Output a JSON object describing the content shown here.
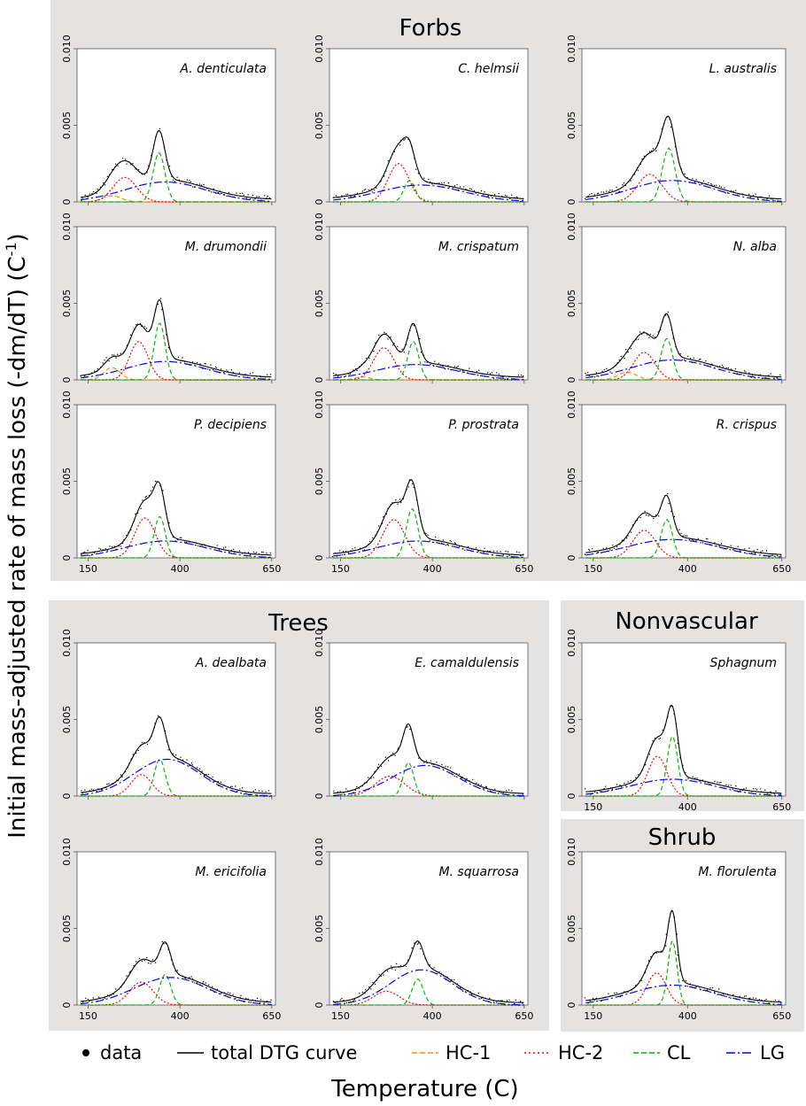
{
  "figure": {
    "ylabel": "Initial mass-adjusted rate of mass loss (-dm/dT) (C",
    "ylabel_sup": "-1",
    "ylabel_end": ")",
    "xlabel": "Temperature (C)"
  },
  "groups": {
    "forbs": "Forbs",
    "trees": "Trees",
    "nonvascular": "Nonvascular",
    "shrub": "Shrub"
  },
  "legend": [
    {
      "key": "data",
      "label": "data",
      "color": "#000000",
      "style": "dot"
    },
    {
      "key": "total",
      "label": "total DTG curve",
      "color": "#000000",
      "style": "solid"
    },
    {
      "key": "hc1",
      "label": "HC-1",
      "color": "#ff8c00",
      "style": "dash"
    },
    {
      "key": "hc2",
      "label": "HC-2",
      "color": "#ff0000",
      "style": "dot-line"
    },
    {
      "key": "cl",
      "label": "CL",
      "color": "#00bb00",
      "style": "dash"
    },
    {
      "key": "lg",
      "label": "LG",
      "color": "#0000ff",
      "style": "dash"
    }
  ],
  "chart_data": {
    "type": "line",
    "xlim": [
      120,
      660
    ],
    "ylim": [
      0,
      0.01
    ],
    "xticks": [
      "150",
      "400",
      "650"
    ],
    "yticks": [
      "0",
      "0.005",
      "0.010"
    ],
    "panels": [
      {
        "id": "A_denticulata",
        "label": "A. denticulata",
        "group": "Forbs",
        "components": {
          "hc1": [
            0.0004,
            215,
            25
          ],
          "hc2": [
            0.0016,
            250,
            32
          ],
          "cl": [
            0.0032,
            343,
            16
          ],
          "lg": [
            0.0013,
            360,
            110
          ]
        }
      },
      {
        "id": "C_helmsii",
        "label": "C. helmsii",
        "group": "Forbs",
        "components": {
          "hc2": [
            0.0025,
            308,
            28
          ],
          "cl": [
            0.0014,
            338,
            15
          ],
          "lg": [
            0.0011,
            370,
            115
          ]
        }
      },
      {
        "id": "L_australis",
        "label": "L. australis",
        "group": "Forbs",
        "components": {
          "hc2": [
            0.0018,
            300,
            32
          ],
          "cl": [
            0.0035,
            350,
            17
          ],
          "lg": [
            0.0014,
            360,
            110
          ]
        }
      },
      {
        "id": "M_drumondii",
        "label": "M. drumondii",
        "group": "Forbs",
        "components": {
          "hc1": [
            0.0008,
            215,
            22
          ],
          "hc2": [
            0.0025,
            288,
            25
          ],
          "cl": [
            0.0037,
            345,
            15
          ],
          "lg": [
            0.0012,
            360,
            110
          ]
        }
      },
      {
        "id": "M_crispatum",
        "label": "M. crispatum",
        "group": "Forbs",
        "components": {
          "hc1": [
            0.0002,
            210,
            20
          ],
          "hc2": [
            0.0021,
            268,
            28
          ],
          "cl": [
            0.0025,
            348,
            15
          ],
          "lg": [
            0.001,
            355,
            110
          ]
        }
      },
      {
        "id": "N_alba",
        "label": "N. alba",
        "group": "Forbs",
        "components": {
          "hc1": [
            0.0005,
            240,
            25
          ],
          "hc2": [
            0.0018,
            285,
            28
          ],
          "cl": [
            0.0027,
            345,
            15
          ],
          "lg": [
            0.0013,
            360,
            110
          ]
        }
      },
      {
        "id": "P_decipiens",
        "label": "P. decipiens",
        "group": "Forbs",
        "components": {
          "hc2": [
            0.0026,
            305,
            28
          ],
          "cl": [
            0.0027,
            345,
            15
          ],
          "lg": [
            0.0011,
            360,
            110
          ]
        }
      },
      {
        "id": "P_prostrata",
        "label": "P. prostrata",
        "group": "Forbs",
        "components": {
          "hc2": [
            0.0025,
            295,
            30
          ],
          "cl": [
            0.0032,
            345,
            16
          ],
          "lg": [
            0.0011,
            360,
            110
          ]
        }
      },
      {
        "id": "R_crispus",
        "label": "R. crispus",
        "group": "Forbs",
        "components": {
          "hc2": [
            0.0018,
            285,
            30
          ],
          "cl": [
            0.0025,
            345,
            15
          ],
          "lg": [
            0.0012,
            360,
            120
          ]
        }
      },
      {
        "id": "A_dealbata",
        "label": "A. dealbata",
        "group": "Trees",
        "components": {
          "hc2": [
            0.0014,
            295,
            28
          ],
          "cl": [
            0.0024,
            345,
            15
          ],
          "lg": [
            0.0024,
            365,
            90
          ]
        }
      },
      {
        "id": "E_camaldulensis",
        "label": "E. camaldulensis",
        "group": "Trees",
        "components": {
          "hc2": [
            0.0013,
            285,
            40
          ],
          "cl": [
            0.0022,
            335,
            14
          ],
          "lg": [
            0.002,
            380,
            90
          ]
        }
      },
      {
        "id": "M_ericifolia",
        "label": "M. ericifolia",
        "group": "Trees",
        "components": {
          "hc2": [
            0.0015,
            295,
            32
          ],
          "cl": [
            0.002,
            360,
            15
          ],
          "lg": [
            0.0018,
            375,
            100
          ]
        }
      },
      {
        "id": "M_squarrosa",
        "label": "M. squarrosa",
        "group": "Trees",
        "components": {
          "hc2": [
            0.0009,
            275,
            35
          ],
          "cl": [
            0.0017,
            360,
            15
          ],
          "lg": [
            0.0023,
            370,
            85
          ]
        }
      },
      {
        "id": "Sphagnum",
        "label": "Sphagnum",
        "group": "Nonvascular",
        "components": {
          "hc2": [
            0.0026,
            320,
            25
          ],
          "cl": [
            0.0039,
            360,
            14
          ],
          "lg": [
            0.0011,
            360,
            110
          ]
        }
      },
      {
        "id": "M_florulenta",
        "label": "M. florulenta",
        "group": "Shrub",
        "components": {
          "hc2": [
            0.0021,
            318,
            25
          ],
          "cl": [
            0.0042,
            360,
            12
          ],
          "lg": [
            0.0013,
            360,
            110
          ]
        }
      }
    ]
  }
}
